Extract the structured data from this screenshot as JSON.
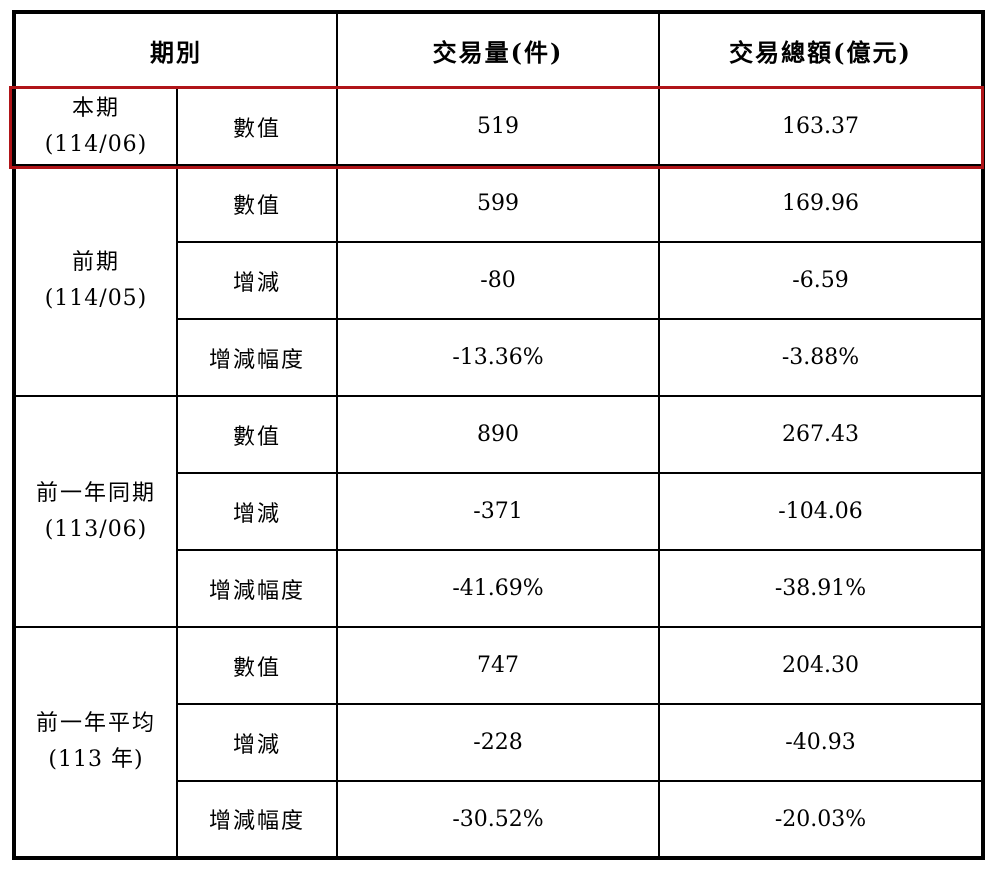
{
  "accent_color": "#b01418",
  "grid_color": "#000000",
  "header": {
    "period_label": "期別",
    "volume_label": "交易量(件)",
    "amount_label": "交易總額(億元)"
  },
  "highlight": {
    "group": "本期",
    "group_sub": "(114/06)",
    "row_label": "數值",
    "volume": "519",
    "amount": "163.37"
  },
  "sections": [
    {
      "group": "前期",
      "group_sub": "(114/05)",
      "rows": [
        {
          "label": "數值",
          "volume": "599",
          "amount": "169.96"
        },
        {
          "label": "增減",
          "volume": "-80",
          "amount": "-6.59"
        },
        {
          "label": "增減幅度",
          "volume": "-13.36%",
          "amount": "-3.88%"
        }
      ]
    },
    {
      "group": "前一年同期",
      "group_sub": "(113/06)",
      "rows": [
        {
          "label": "數值",
          "volume": "890",
          "amount": "267.43"
        },
        {
          "label": "增減",
          "volume": "-371",
          "amount": "-104.06"
        },
        {
          "label": "增減幅度",
          "volume": "-41.69%",
          "amount": "-38.91%"
        }
      ]
    },
    {
      "group": "前一年平均",
      "group_sub": "(113 年)",
      "rows": [
        {
          "label": "數值",
          "volume": "747",
          "amount": "204.30"
        },
        {
          "label": "增減",
          "volume": "-228",
          "amount": "-40.93"
        },
        {
          "label": "增減幅度",
          "volume": "-30.52%",
          "amount": "-20.03%"
        }
      ]
    }
  ]
}
